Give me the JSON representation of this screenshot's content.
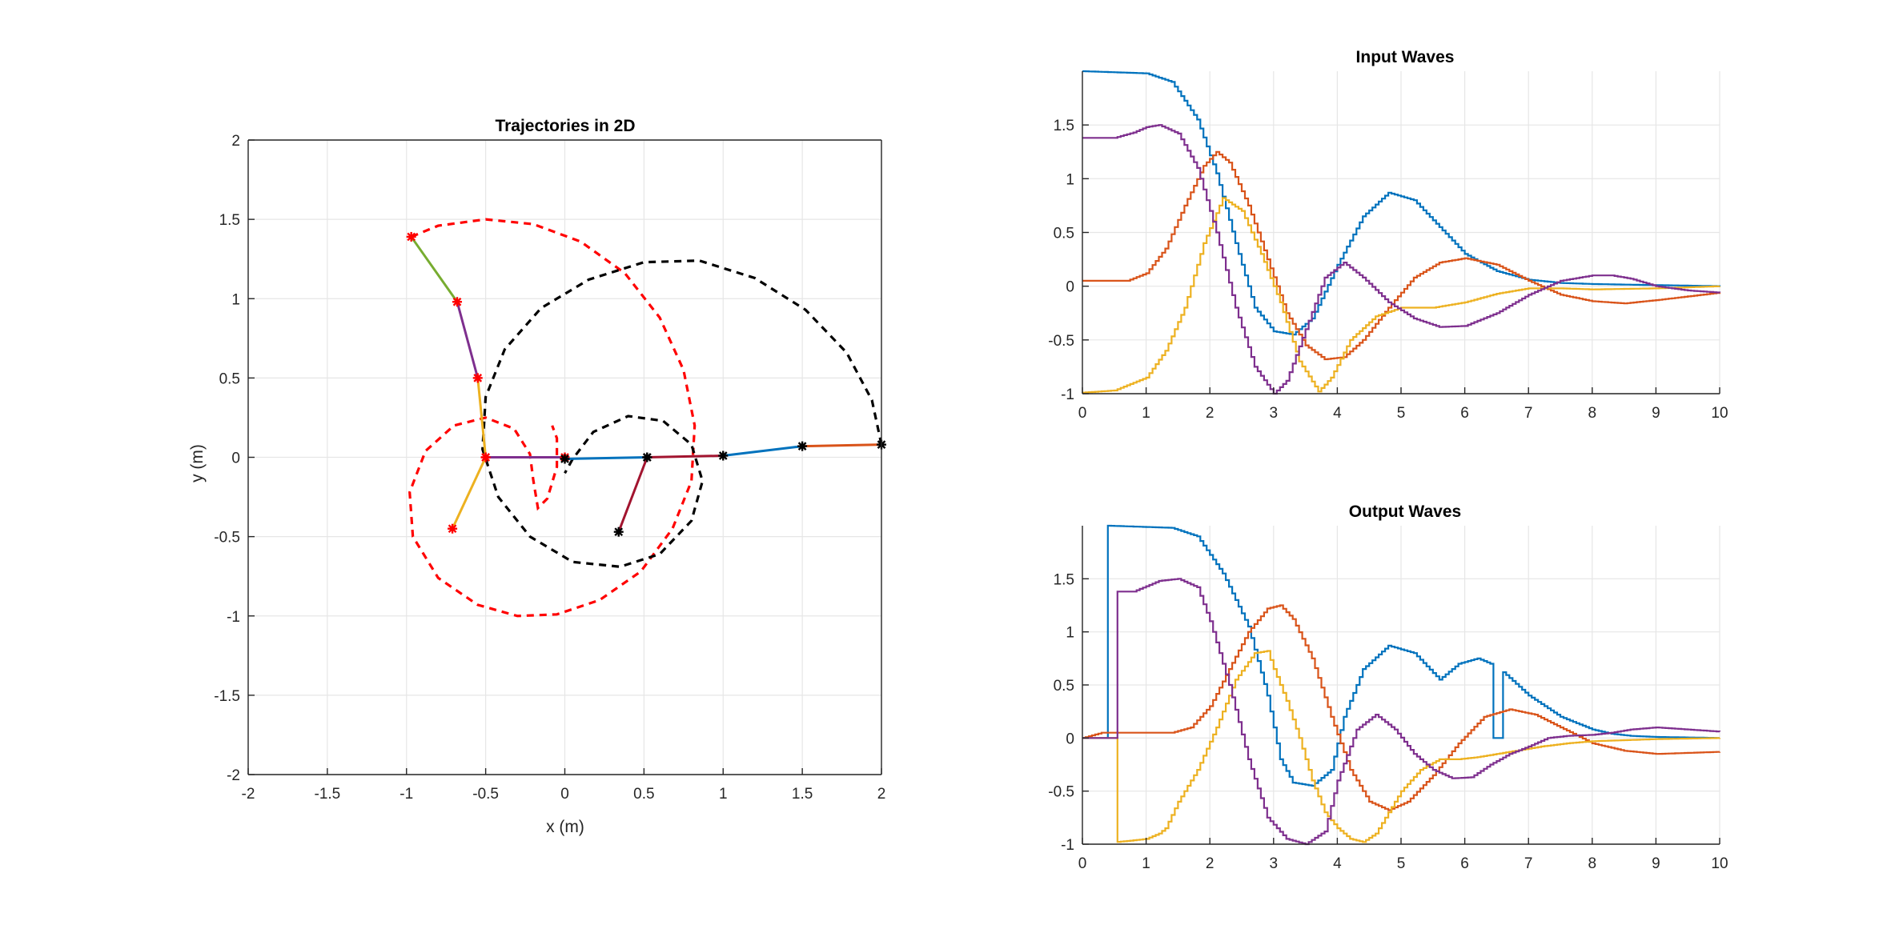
{
  "chart_data": [
    {
      "type": "line",
      "title": "Trajectories in 2D",
      "xlabel": "x (m)",
      "ylabel": "y (m)",
      "xlim": [
        -2,
        2
      ],
      "ylim": [
        -2,
        2
      ],
      "xticks": [
        -2,
        -1.5,
        -1,
        -0.5,
        0,
        0.5,
        1,
        1.5,
        2
      ],
      "xtick_labels": [
        "-2",
        "-1.5",
        "-1",
        "-0.5",
        "0",
        "0.5",
        "1",
        "1.5",
        "2"
      ],
      "yticks": [
        -2,
        -1.5,
        -1,
        -0.5,
        0,
        0.5,
        1,
        1.5,
        2
      ],
      "ytick_labels": [
        "-2",
        "-1.5",
        "-1",
        "-0.5",
        "0",
        "0.5",
        "1",
        "1.5",
        "2"
      ],
      "grid": true,
      "arms": [
        {
          "name": "",
          "marker_color": "#ff0000",
          "joints": [
            [
              0,
              0
            ],
            [
              -0.5,
              0
            ],
            [
              -0.55,
              0.5
            ],
            [
              -0.68,
              0.98
            ],
            [
              -0.97,
              1.39
            ]
          ],
          "link_colors": [
            "#7e2f8e",
            "#edb120",
            "#7e2f8e",
            "#77ac30"
          ]
        },
        {
          "name": "",
          "marker_color": "#ff0000",
          "joints": [
            [
              -0.5,
              0
            ],
            [
              -0.71,
              -0.45
            ]
          ],
          "link_colors": [
            "#edb120"
          ]
        },
        {
          "name": "",
          "marker_color": "#000000",
          "joints": [
            [
              0,
              -0.01
            ],
            [
              0.52,
              0
            ],
            [
              1.0,
              0.01
            ],
            [
              1.5,
              0.07
            ],
            [
              2.0,
              0.08
            ]
          ],
          "link_colors": [
            "#0072bd",
            "#a2142f",
            "#0072bd",
            "#d95319"
          ]
        },
        {
          "name": "",
          "marker_color": "#000000",
          "joints": [
            [
              0.52,
              0
            ],
            [
              0.34,
              -0.47
            ]
          ],
          "link_colors": [
            "#a2142f"
          ]
        }
      ],
      "trajectories": [
        {
          "name": "",
          "color": "#ff0000",
          "style": "dashed",
          "points": [
            [
              -0.97,
              1.39
            ],
            [
              -0.8,
              1.46
            ],
            [
              -0.5,
              1.5
            ],
            [
              -0.2,
              1.47
            ],
            [
              0.1,
              1.36
            ],
            [
              0.38,
              1.16
            ],
            [
              0.6,
              0.88
            ],
            [
              0.75,
              0.55
            ],
            [
              0.82,
              0.2
            ],
            [
              0.8,
              -0.15
            ],
            [
              0.68,
              -0.45
            ],
            [
              0.48,
              -0.72
            ],
            [
              0.22,
              -0.9
            ],
            [
              -0.05,
              -0.99
            ],
            [
              -0.3,
              -1.0
            ],
            [
              -0.55,
              -0.93
            ],
            [
              -0.8,
              -0.76
            ],
            [
              -0.96,
              -0.5
            ],
            [
              -0.98,
              -0.22
            ],
            [
              -0.88,
              0.04
            ],
            [
              -0.7,
              0.2
            ],
            [
              -0.5,
              0.25
            ],
            [
              -0.32,
              0.18
            ],
            [
              -0.22,
              0.02
            ],
            [
              -0.2,
              -0.14
            ],
            [
              -0.17,
              -0.32
            ],
            [
              -0.11,
              -0.26
            ],
            [
              -0.05,
              -0.06
            ],
            [
              -0.05,
              0.12
            ],
            [
              -0.08,
              0.2
            ]
          ]
        },
        {
          "name": "",
          "color": "#000000",
          "style": "dashed",
          "points": [
            [
              2.0,
              0.08
            ],
            [
              1.94,
              0.36
            ],
            [
              1.78,
              0.66
            ],
            [
              1.52,
              0.93
            ],
            [
              1.2,
              1.13
            ],
            [
              0.85,
              1.24
            ],
            [
              0.5,
              1.23
            ],
            [
              0.15,
              1.12
            ],
            [
              -0.15,
              0.94
            ],
            [
              -0.38,
              0.68
            ],
            [
              -0.5,
              0.38
            ],
            [
              -0.52,
              0.05
            ],
            [
              -0.42,
              -0.25
            ],
            [
              -0.22,
              -0.5
            ],
            [
              0.05,
              -0.66
            ],
            [
              0.35,
              -0.69
            ],
            [
              0.6,
              -0.61
            ],
            [
              0.8,
              -0.4
            ],
            [
              0.87,
              -0.15
            ],
            [
              0.8,
              0.08
            ],
            [
              0.62,
              0.23
            ],
            [
              0.4,
              0.26
            ],
            [
              0.18,
              0.16
            ],
            [
              0.05,
              -0.01
            ],
            [
              0.0,
              -0.1
            ]
          ]
        }
      ]
    },
    {
      "type": "line",
      "title": "Input Waves",
      "xlabel": "",
      "ylabel": "",
      "xlim": [
        0,
        10
      ],
      "ylim": [
        -1,
        2
      ],
      "xticks": [
        0,
        1,
        2,
        3,
        4,
        5,
        6,
        7,
        8,
        9,
        10
      ],
      "xtick_labels": [
        "0",
        "1",
        "2",
        "3",
        "4",
        "5",
        "6",
        "7",
        "8",
        "9",
        "10"
      ],
      "yticks": [
        -1,
        -0.5,
        0,
        0.5,
        1,
        1.5
      ],
      "ytick_labels": [
        "-1",
        "-0.5",
        "0",
        "0.5",
        "1",
        "1.5"
      ],
      "grid": true,
      "stairs": true,
      "series": [
        {
          "name": "",
          "color": "#0072bd",
          "x": [
            0,
            0.5,
            1,
            1.4,
            1.8,
            2.1,
            2.4,
            2.7,
            3.0,
            3.3,
            3.6,
            4.0,
            4.4,
            4.8,
            5.2,
            5.6,
            6.0,
            6.5,
            7.0,
            7.5,
            8.0,
            9.0,
            10
          ],
          "y": [
            2.0,
            1.99,
            1.98,
            1.9,
            1.55,
            1.05,
            0.4,
            -0.2,
            -0.42,
            -0.45,
            -0.3,
            0.2,
            0.65,
            0.87,
            0.8,
            0.55,
            0.3,
            0.14,
            0.06,
            0.03,
            0.02,
            0.01,
            0.0
          ]
        },
        {
          "name": "",
          "color": "#d95319",
          "x": [
            0,
            0.7,
            1.0,
            1.3,
            1.6,
            1.9,
            2.1,
            2.3,
            2.6,
            2.9,
            3.2,
            3.5,
            3.8,
            4.1,
            4.4,
            4.8,
            5.2,
            5.6,
            6.0,
            6.5,
            7.0,
            7.5,
            8.0,
            8.5,
            9.0,
            10
          ],
          "y": [
            0.05,
            0.05,
            0.12,
            0.35,
            0.75,
            1.12,
            1.25,
            1.15,
            0.75,
            0.25,
            -0.25,
            -0.55,
            -0.68,
            -0.66,
            -0.5,
            -0.2,
            0.08,
            0.22,
            0.26,
            0.2,
            0.05,
            -0.08,
            -0.14,
            -0.16,
            -0.13,
            -0.06
          ]
        },
        {
          "name": "",
          "color": "#edb120",
          "x": [
            0,
            0.5,
            1.0,
            1.3,
            1.6,
            1.9,
            2.2,
            2.5,
            2.8,
            3.1,
            3.4,
            3.7,
            3.9,
            4.2,
            4.6,
            5.0,
            5.5,
            6.0,
            6.5,
            7.0,
            7.5,
            8.0,
            9.0,
            10
          ],
          "y": [
            -0.99,
            -0.97,
            -0.85,
            -0.6,
            -0.2,
            0.4,
            0.82,
            0.7,
            0.3,
            -0.15,
            -0.7,
            -0.98,
            -0.85,
            -0.5,
            -0.28,
            -0.2,
            -0.2,
            -0.15,
            -0.07,
            -0.02,
            -0.02,
            -0.03,
            -0.02,
            0.0
          ]
        },
        {
          "name": "",
          "color": "#7e2f8e",
          "x": [
            0,
            0.5,
            0.8,
            1.0,
            1.2,
            1.5,
            1.8,
            2.1,
            2.4,
            2.7,
            3.0,
            3.2,
            3.5,
            3.8,
            4.1,
            4.4,
            4.8,
            5.2,
            5.6,
            6.0,
            6.5,
            7.0,
            7.5,
            8.0,
            8.3,
            8.6,
            9.0,
            9.5,
            10
          ],
          "y": [
            1.38,
            1.38,
            1.43,
            1.48,
            1.5,
            1.42,
            1.1,
            0.5,
            -0.2,
            -0.75,
            -1.0,
            -0.88,
            -0.4,
            0.08,
            0.22,
            0.08,
            -0.15,
            -0.3,
            -0.38,
            -0.37,
            -0.25,
            -0.08,
            0.05,
            0.1,
            0.1,
            0.07,
            0.0,
            -0.04,
            -0.06
          ]
        }
      ]
    },
    {
      "type": "line",
      "title": "Output Waves",
      "xlabel": "",
      "ylabel": "",
      "xlim": [
        0,
        10
      ],
      "ylim": [
        -1,
        2
      ],
      "xticks": [
        0,
        1,
        2,
        3,
        4,
        5,
        6,
        7,
        8,
        9,
        10
      ],
      "xtick_labels": [
        "0",
        "1",
        "2",
        "3",
        "4",
        "5",
        "6",
        "7",
        "8",
        "9",
        "10"
      ],
      "yticks": [
        -1,
        -0.5,
        0,
        0.5,
        1,
        1.5
      ],
      "ytick_labels": [
        "-1",
        "-0.5",
        "0",
        "0.5",
        "1",
        "1.5"
      ],
      "grid": true,
      "stairs": true,
      "series": [
        {
          "name": "",
          "color": "#0072bd",
          "x": [
            0,
            0.39,
            0.4,
            0.9,
            1.4,
            1.8,
            2.2,
            2.6,
            2.9,
            3.1,
            3.3,
            3.6,
            3.9,
            4.1,
            4.4,
            4.8,
            5.2,
            5.6,
            5.9,
            6.2,
            6.4,
            6.41,
            6.55,
            6.56,
            6.6,
            7.0,
            7.5,
            8.0,
            8.3,
            8.6,
            9.0,
            10
          ],
          "y": [
            0,
            0,
            2.0,
            1.99,
            1.98,
            1.9,
            1.55,
            1.05,
            0.4,
            -0.2,
            -0.42,
            -0.45,
            -0.3,
            0.2,
            0.65,
            0.87,
            0.8,
            0.55,
            0.7,
            0.75,
            0.7,
            0.0,
            0.0,
            0.65,
            0.62,
            0.4,
            0.2,
            0.08,
            0.04,
            0.02,
            0.01,
            0.0
          ]
        },
        {
          "name": "",
          "color": "#d95319",
          "x": [
            0,
            0.3,
            1.4,
            1.7,
            2.0,
            2.3,
            2.6,
            2.9,
            3.1,
            3.3,
            3.6,
            3.9,
            4.2,
            4.5,
            4.8,
            5.1,
            5.5,
            5.9,
            6.3,
            6.7,
            7.1,
            7.5,
            8.0,
            8.5,
            9.0,
            10
          ],
          "y": [
            0,
            0.05,
            0.05,
            0.1,
            0.3,
            0.65,
            1.0,
            1.22,
            1.25,
            1.12,
            0.75,
            0.2,
            -0.3,
            -0.6,
            -0.68,
            -0.6,
            -0.35,
            -0.05,
            0.2,
            0.27,
            0.22,
            0.1,
            -0.05,
            -0.12,
            -0.15,
            -0.13
          ]
        },
        {
          "name": "",
          "color": "#edb120",
          "x": [
            0,
            0.5,
            0.51,
            0.7,
            1.0,
            1.2,
            1.3,
            1.5,
            1.8,
            2.1,
            2.4,
            2.7,
            2.9,
            3.0,
            3.2,
            3.4,
            3.6,
            3.8,
            4.0,
            4.2,
            4.4,
            4.6,
            4.8,
            5.0,
            5.3,
            5.6,
            5.9,
            6.2,
            6.5,
            6.8,
            7.2,
            7.6,
            8.0,
            8.5,
            9.0,
            10
          ],
          "y": [
            0,
            0,
            -0.98,
            -0.97,
            -0.95,
            -0.9,
            -0.85,
            -0.6,
            -0.3,
            0.1,
            0.55,
            0.8,
            0.82,
            0.65,
            0.35,
            0.0,
            -0.4,
            -0.7,
            -0.85,
            -0.95,
            -0.98,
            -0.9,
            -0.7,
            -0.5,
            -0.3,
            -0.2,
            -0.2,
            -0.18,
            -0.15,
            -0.12,
            -0.08,
            -0.05,
            -0.03,
            -0.02,
            -0.01,
            0.0
          ]
        },
        {
          "name": "",
          "color": "#7e2f8e",
          "x": [
            0,
            0.5,
            0.51,
            0.8,
            1.0,
            1.2,
            1.5,
            1.8,
            2.0,
            2.3,
            2.6,
            2.9,
            3.2,
            3.5,
            3.8,
            4.0,
            4.3,
            4.6,
            4.9,
            5.2,
            5.5,
            5.8,
            6.1,
            6.4,
            6.7,
            7.0,
            7.3,
            7.6,
            8.0,
            8.3,
            8.6,
            9.0,
            9.5,
            10
          ],
          "y": [
            0,
            0,
            1.38,
            1.38,
            1.43,
            1.48,
            1.5,
            1.42,
            1.1,
            0.5,
            -0.2,
            -0.75,
            -0.95,
            -1.0,
            -0.88,
            -0.4,
            0.08,
            0.22,
            0.08,
            -0.15,
            -0.3,
            -0.38,
            -0.37,
            -0.25,
            -0.15,
            -0.08,
            0.0,
            0.02,
            0.03,
            0.05,
            0.08,
            0.1,
            0.08,
            0.06
          ]
        }
      ]
    }
  ]
}
